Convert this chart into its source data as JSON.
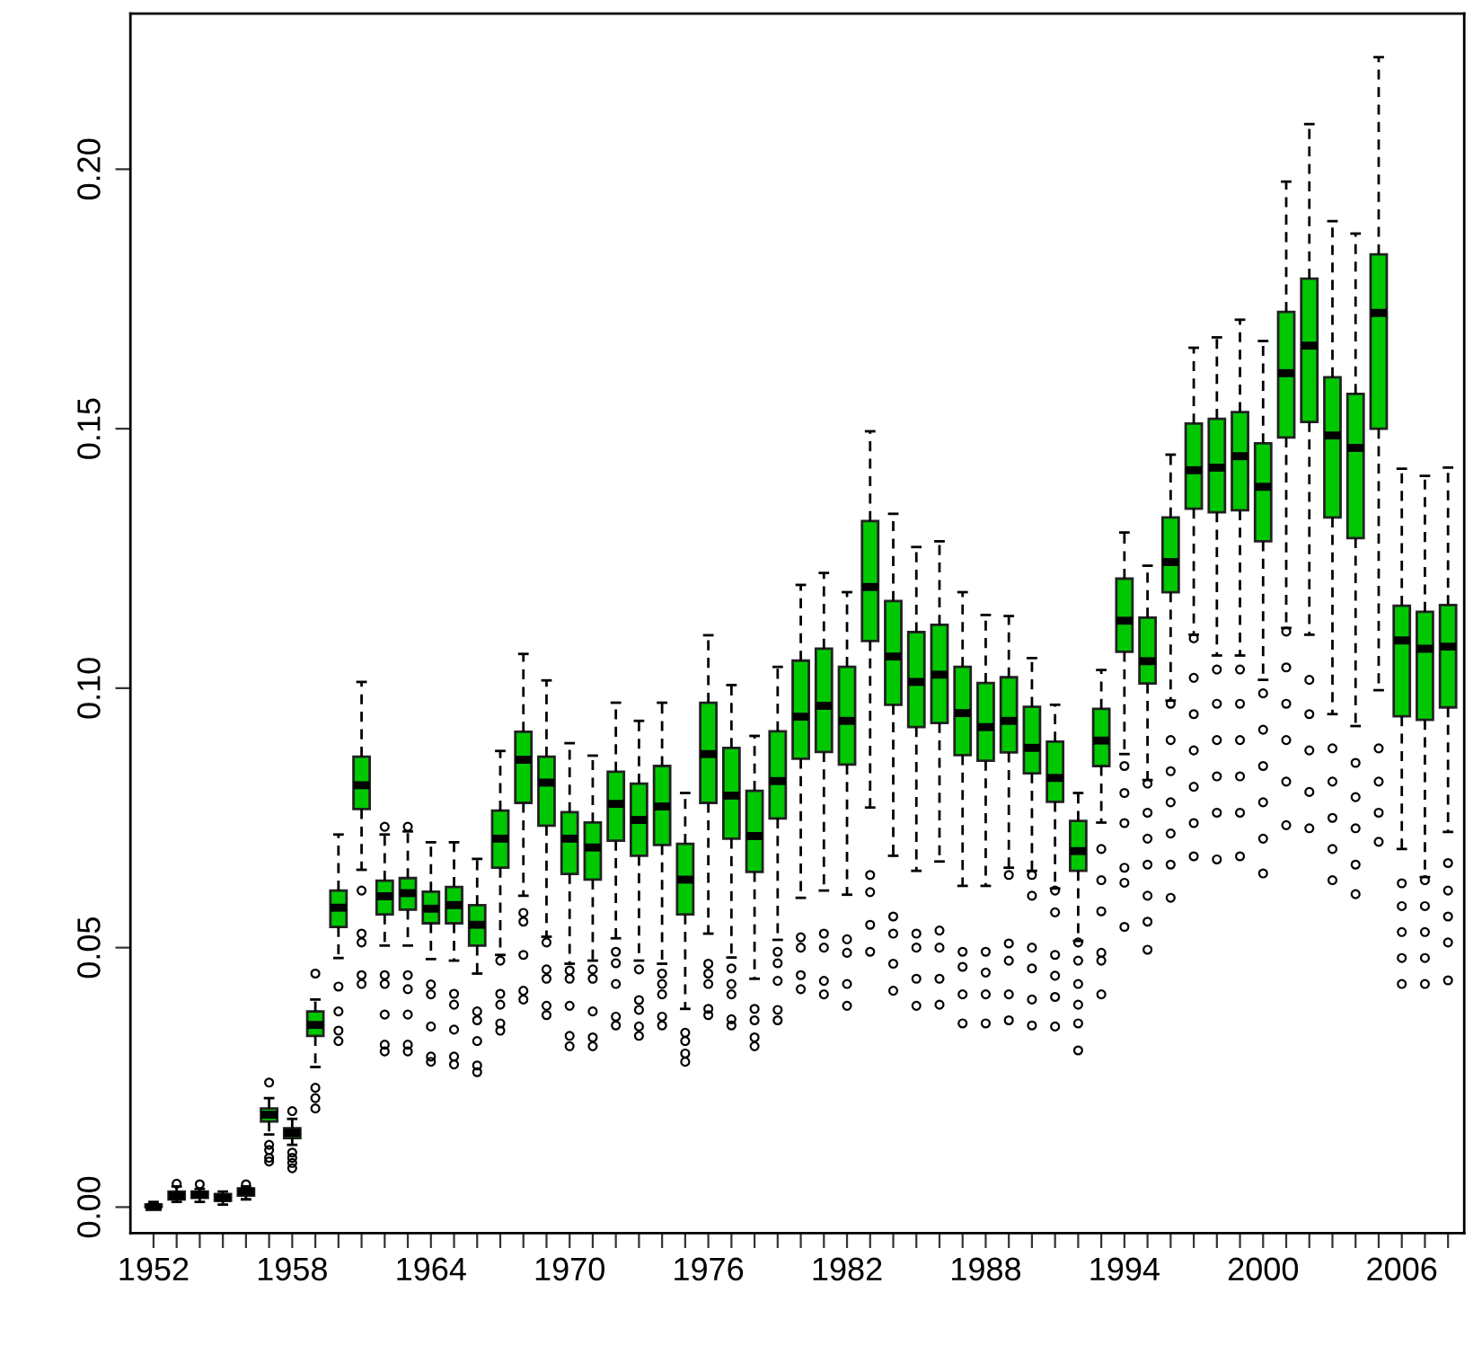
{
  "chart_data": {
    "type": "box",
    "color": "#00c800",
    "marker": "circle",
    "line_style": "dashed",
    "categories": [
      "1952",
      null,
      null,
      null,
      null,
      null,
      "1958",
      null,
      null,
      null,
      null,
      null,
      "1964",
      null,
      null,
      null,
      null,
      null,
      "1970",
      null,
      null,
      null,
      null,
      null,
      "1976",
      null,
      null,
      null,
      null,
      null,
      "1982",
      null,
      null,
      null,
      null,
      null,
      "1988",
      null,
      null,
      null,
      null,
      null,
      "1994",
      null,
      null,
      null,
      null,
      null,
      "2000",
      null,
      null,
      null,
      null,
      null,
      "2006",
      null,
      null
    ],
    "ylim": [
      -0.005,
      0.23
    ],
    "yticks": [
      {
        "value": 0,
        "label": "0.00"
      },
      {
        "value": 0.05,
        "label": "0.05"
      },
      {
        "value": 0.1,
        "label": "0.10"
      },
      {
        "value": 0.15,
        "label": "0.15"
      },
      {
        "value": 0.2,
        "label": "0.20"
      }
    ],
    "boxes": [
      {
        "low": 0.0,
        "q1": 0.0,
        "median": 0.0,
        "q3": 0.0005,
        "high": 0.001
      },
      {
        "low": 0.001,
        "q1": 0.0015,
        "median": 0.0022,
        "q3": 0.003,
        "high": 0.004,
        "outliers": [
          0.0045
        ]
      },
      {
        "low": 0.001,
        "q1": 0.0018,
        "median": 0.0024,
        "q3": 0.003,
        "high": 0.0035,
        "outliers": [
          0.0044
        ]
      },
      {
        "low": 0.0005,
        "q1": 0.0012,
        "median": 0.0018,
        "q3": 0.0025,
        "high": 0.003
      },
      {
        "low": 0.0015,
        "q1": 0.0022,
        "median": 0.003,
        "q3": 0.0036,
        "high": 0.004,
        "outliers": [
          0.0044
        ]
      },
      {
        "low": 0.014,
        "q1": 0.0165,
        "median": 0.0178,
        "q3": 0.019,
        "high": 0.021,
        "outliers": [
          0.024,
          0.012,
          0.011,
          0.0095,
          0.0088
        ]
      },
      {
        "low": 0.012,
        "q1": 0.0133,
        "median": 0.0143,
        "q3": 0.0152,
        "high": 0.017,
        "outliers": [
          0.0185,
          0.0105,
          0.0095,
          0.0085,
          0.0075
        ]
      },
      {
        "low": 0.027,
        "q1": 0.033,
        "median": 0.0351,
        "q3": 0.0377,
        "high": 0.04,
        "outliers": [
          0.045,
          0.023,
          0.021,
          0.019
        ]
      },
      {
        "low": 0.048,
        "q1": 0.054,
        "median": 0.0577,
        "q3": 0.061,
        "high": 0.0718,
        "outliers": [
          0.0425,
          0.0377,
          0.034,
          0.032
        ]
      },
      {
        "low": 0.065,
        "q1": 0.0767,
        "median": 0.0813,
        "q3": 0.0868,
        "high": 0.1012,
        "outliers": [
          0.061,
          0.0527,
          0.051,
          0.0447,
          0.043
        ]
      },
      {
        "low": 0.0504,
        "q1": 0.0564,
        "median": 0.0599,
        "q3": 0.0629,
        "high": 0.0718,
        "outliers": [
          0.0733,
          0.0447,
          0.043,
          0.0371,
          0.0313,
          0.03
        ]
      },
      {
        "low": 0.0504,
        "q1": 0.0573,
        "median": 0.0605,
        "q3": 0.0634,
        "high": 0.0724,
        "outliers": [
          0.0733,
          0.0447,
          0.042,
          0.0371,
          0.0313,
          0.03
        ]
      },
      {
        "low": 0.0478,
        "q1": 0.0547,
        "median": 0.0575,
        "q3": 0.0608,
        "high": 0.0703,
        "outliers": [
          0.0429,
          0.041,
          0.0348,
          0.029,
          0.028
        ]
      },
      {
        "low": 0.0475,
        "q1": 0.0547,
        "median": 0.0582,
        "q3": 0.0617,
        "high": 0.0703,
        "outliers": [
          0.0411,
          0.039,
          0.0342,
          0.029,
          0.0275
        ]
      },
      {
        "low": 0.045,
        "q1": 0.0504,
        "median": 0.0544,
        "q3": 0.0582,
        "high": 0.0671,
        "outliers": [
          0.0377,
          0.036,
          0.032,
          0.0273,
          0.026
        ]
      },
      {
        "low": 0.0486,
        "q1": 0.0654,
        "median": 0.071,
        "q3": 0.0764,
        "high": 0.0879,
        "outliers": [
          0.0475,
          0.0411,
          0.039,
          0.0354,
          0.034
        ]
      },
      {
        "low": 0.06,
        "q1": 0.0779,
        "median": 0.0862,
        "q3": 0.0916,
        "high": 0.1066,
        "outliers": [
          0.0567,
          0.055,
          0.0486,
          0.0417,
          0.04
        ]
      },
      {
        "low": 0.0521,
        "q1": 0.0735,
        "median": 0.0818,
        "q3": 0.0868,
        "high": 0.1015,
        "outliers": [
          0.051,
          0.0458,
          0.044,
          0.0388,
          0.037
        ]
      },
      {
        "low": 0.0469,
        "q1": 0.0642,
        "median": 0.071,
        "q3": 0.0761,
        "high": 0.0894,
        "outliers": [
          0.0456,
          0.044,
          0.0388,
          0.033,
          0.031
        ]
      },
      {
        "low": 0.0475,
        "q1": 0.0631,
        "median": 0.0693,
        "q3": 0.0741,
        "high": 0.087,
        "outliers": [
          0.0458,
          0.044,
          0.0377,
          0.0327,
          0.031
        ]
      },
      {
        "low": 0.0518,
        "q1": 0.0706,
        "median": 0.0777,
        "q3": 0.0839,
        "high": 0.0972,
        "outliers": [
          0.0492,
          0.047,
          0.043,
          0.0367,
          0.035
        ]
      },
      {
        "low": 0.0475,
        "q1": 0.0677,
        "median": 0.0746,
        "q3": 0.0816,
        "high": 0.0937,
        "outliers": [
          0.0458,
          0.0399,
          0.038,
          0.0348,
          0.033
        ]
      },
      {
        "low": 0.0469,
        "q1": 0.0698,
        "median": 0.0772,
        "q3": 0.085,
        "high": 0.0972,
        "outliers": [
          0.045,
          0.043,
          0.041,
          0.0367,
          0.035
        ]
      },
      {
        "low": 0.0382,
        "q1": 0.0564,
        "median": 0.0631,
        "q3": 0.07,
        "high": 0.0798,
        "outliers": [
          0.0336,
          0.032,
          0.0296,
          0.028
        ]
      },
      {
        "low": 0.0527,
        "q1": 0.0779,
        "median": 0.0873,
        "q3": 0.0972,
        "high": 0.1102,
        "outliers": [
          0.0469,
          0.045,
          0.043,
          0.0382,
          0.037
        ]
      },
      {
        "low": 0.0481,
        "q1": 0.071,
        "median": 0.0793,
        "q3": 0.0885,
        "high": 0.1006,
        "outliers": [
          0.046,
          0.043,
          0.041,
          0.0362,
          0.035
        ]
      },
      {
        "low": 0.044,
        "q1": 0.0646,
        "median": 0.0715,
        "q3": 0.0802,
        "high": 0.0908,
        "outliers": [
          0.0382,
          0.036,
          0.0327,
          0.031
        ]
      },
      {
        "low": 0.0515,
        "q1": 0.0749,
        "median": 0.0821,
        "q3": 0.0917,
        "high": 0.1041,
        "outliers": [
          0.0492,
          0.047,
          0.0436,
          0.038,
          0.036
        ]
      },
      {
        "low": 0.0596,
        "q1": 0.0864,
        "median": 0.0945,
        "q3": 0.1053,
        "high": 0.1199,
        "outliers": [
          0.052,
          0.05,
          0.0447,
          0.042
        ]
      },
      {
        "low": 0.061,
        "q1": 0.0877,
        "median": 0.0966,
        "q3": 0.1076,
        "high": 0.1222,
        "outliers": [
          0.0527,
          0.05,
          0.0436,
          0.041
        ]
      },
      {
        "low": 0.0602,
        "q1": 0.0853,
        "median": 0.0937,
        "q3": 0.1041,
        "high": 0.1185,
        "outliers": [
          0.0516,
          0.049,
          0.043,
          0.0388
        ]
      },
      {
        "low": 0.077,
        "q1": 0.1091,
        "median": 0.1195,
        "q3": 0.1322,
        "high": 0.1495,
        "outliers": [
          0.064,
          0.0607,
          0.0544,
          0.0492
        ]
      },
      {
        "low": 0.0677,
        "q1": 0.0968,
        "median": 0.1061,
        "q3": 0.1168,
        "high": 0.1336,
        "outliers": [
          0.056,
          0.0527,
          0.0469,
          0.0417
        ]
      },
      {
        "low": 0.0648,
        "q1": 0.0925,
        "median": 0.1012,
        "q3": 0.1108,
        "high": 0.1272,
        "outliers": [
          0.0527,
          0.05,
          0.044,
          0.0388
        ]
      },
      {
        "low": 0.0666,
        "q1": 0.0933,
        "median": 0.1026,
        "q3": 0.1122,
        "high": 0.1283,
        "outliers": [
          0.0533,
          0.05,
          0.044,
          0.039
        ]
      },
      {
        "low": 0.0619,
        "q1": 0.0871,
        "median": 0.0952,
        "q3": 0.1041,
        "high": 0.1185,
        "outliers": [
          0.0492,
          0.0463,
          0.041,
          0.0354
        ]
      },
      {
        "low": 0.0619,
        "q1": 0.086,
        "median": 0.0925,
        "q3": 0.101,
        "high": 0.1141,
        "outliers": [
          0.0492,
          0.0452,
          0.041,
          0.0354
        ]
      },
      {
        "low": 0.0654,
        "q1": 0.0876,
        "median": 0.0937,
        "q3": 0.1021,
        "high": 0.1139,
        "outliers": [
          0.064,
          0.0508,
          0.0475,
          0.041,
          0.036
        ]
      },
      {
        "low": 0.0648,
        "q1": 0.0836,
        "median": 0.0885,
        "q3": 0.0964,
        "high": 0.1058,
        "outliers": [
          0.064,
          0.06,
          0.05,
          0.046,
          0.04,
          0.035
        ]
      },
      {
        "low": 0.0614,
        "q1": 0.0781,
        "median": 0.0827,
        "q3": 0.0897,
        "high": 0.0968,
        "outliers": [
          0.061,
          0.0568,
          0.0486,
          0.0446,
          0.0405,
          0.0348
        ]
      },
      {
        "low": 0.0513,
        "q1": 0.0648,
        "median": 0.0686,
        "q3": 0.0744,
        "high": 0.0798,
        "outliers": [
          0.051,
          0.0475,
          0.043,
          0.039,
          0.0354,
          0.0302
        ]
      },
      {
        "low": 0.0741,
        "q1": 0.085,
        "median": 0.0899,
        "q3": 0.096,
        "high": 0.1035,
        "outliers": [
          0.069,
          0.063,
          0.057,
          0.049,
          0.0475,
          0.041
        ]
      },
      {
        "low": 0.0873,
        "q1": 0.107,
        "median": 0.113,
        "q3": 0.1211,
        "high": 0.13,
        "outliers": [
          0.085,
          0.0798,
          0.074,
          0.0654,
          0.0625,
          0.054
        ]
      },
      {
        "low": 0.0823,
        "q1": 0.1009,
        "median": 0.1052,
        "q3": 0.1136,
        "high": 0.1236,
        "outliers": [
          0.0816,
          0.076,
          0.071,
          0.066,
          0.06,
          0.055,
          0.0496
        ]
      },
      {
        "low": 0.0976,
        "q1": 0.1185,
        "median": 0.1243,
        "q3": 0.1329,
        "high": 0.145,
        "outliers": [
          0.097,
          0.09,
          0.084,
          0.078,
          0.072,
          0.066,
          0.0596
        ]
      },
      {
        "low": 0.1103,
        "q1": 0.1346,
        "median": 0.142,
        "q3": 0.151,
        "high": 0.1656,
        "outliers": [
          0.1096,
          0.102,
          0.095,
          0.088,
          0.081,
          0.074,
          0.0676
        ]
      },
      {
        "low": 0.1063,
        "q1": 0.1339,
        "median": 0.1425,
        "q3": 0.1519,
        "high": 0.1676,
        "outliers": [
          0.1036,
          0.097,
          0.09,
          0.083,
          0.076,
          0.067
        ]
      },
      {
        "low": 0.1063,
        "q1": 0.1343,
        "median": 0.1447,
        "q3": 0.1532,
        "high": 0.171,
        "outliers": [
          0.1036,
          0.097,
          0.09,
          0.083,
          0.076,
          0.0676
        ]
      },
      {
        "low": 0.1016,
        "q1": 0.1283,
        "median": 0.1388,
        "q3": 0.1472,
        "high": 0.1669,
        "outliers": [
          0.099,
          0.092,
          0.085,
          0.078,
          0.071,
          0.0643
        ]
      },
      {
        "low": 0.1116,
        "q1": 0.1483,
        "median": 0.1607,
        "q3": 0.1725,
        "high": 0.1976,
        "outliers": [
          0.1109,
          0.104,
          0.097,
          0.09,
          0.082,
          0.0736
        ]
      },
      {
        "low": 0.1103,
        "q1": 0.1513,
        "median": 0.166,
        "q3": 0.1789,
        "high": 0.2087,
        "outliers": [
          0.1016,
          0.095,
          0.088,
          0.08,
          0.073
        ]
      },
      {
        "low": 0.095,
        "q1": 0.1329,
        "median": 0.1487,
        "q3": 0.1599,
        "high": 0.19,
        "outliers": [
          0.0884,
          0.082,
          0.075,
          0.069,
          0.063
        ]
      },
      {
        "low": 0.0927,
        "q1": 0.1289,
        "median": 0.1463,
        "q3": 0.1567,
        "high": 0.1876,
        "outliers": [
          0.0856,
          0.079,
          0.073,
          0.066,
          0.0603
        ]
      },
      {
        "low": 0.0996,
        "q1": 0.15,
        "median": 0.1723,
        "q3": 0.1836,
        "high": 0.2216,
        "outliers": [
          0.0884,
          0.082,
          0.076,
          0.0704
        ]
      },
      {
        "low": 0.069,
        "q1": 0.0946,
        "median": 0.1092,
        "q3": 0.1159,
        "high": 0.1423,
        "outliers": [
          0.0624,
          0.058,
          0.053,
          0.048,
          0.043
        ]
      },
      {
        "low": 0.0636,
        "q1": 0.0939,
        "median": 0.1076,
        "q3": 0.1147,
        "high": 0.1409,
        "outliers": [
          0.063,
          0.058,
          0.053,
          0.048,
          0.043
        ]
      },
      {
        "low": 0.0723,
        "q1": 0.0963,
        "median": 0.108,
        "q3": 0.116,
        "high": 0.1425,
        "outliers": [
          0.0663,
          0.061,
          0.056,
          0.051,
          0.0437
        ]
      }
    ]
  }
}
